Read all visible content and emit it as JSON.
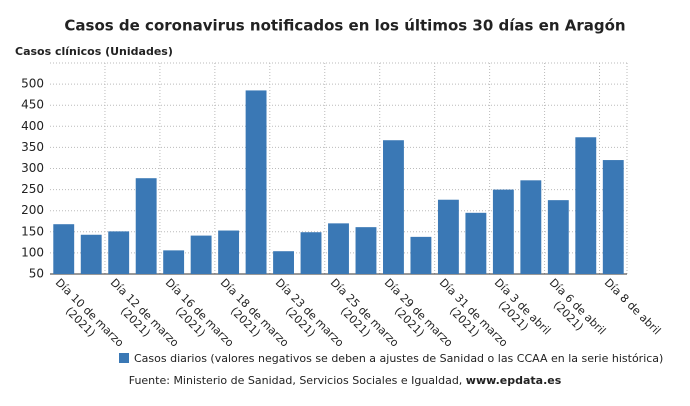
{
  "chart_data": {
    "type": "bar",
    "title": "Casos de coronavirus notificados en los últimos 30 días en Aragón",
    "y_label": "Casos clínicos (Unidades)",
    "categories": [
      "Día 10 de marzo\n(2021)",
      null,
      "Día 12 de marzo\n(2021)",
      null,
      "Día 16 de marzo\n(2021)",
      null,
      "Día 18 de marzo\n(2021)",
      null,
      "Día 23 de marzo\n(2021)",
      null,
      "Día 25 de marzo\n(2021)",
      null,
      "Día 29 de marzo\n(2021)",
      null,
      "Día 31 de marzo\n(2021)",
      null,
      "Día 3 de abril\n(2021)",
      null,
      "Día 6 de abril\n(2021)",
      null,
      "Día 8 de abril"
    ],
    "series": [
      {
        "name": "Casos diarios (valores negativos se deben a ajustes de Sanidad o las CCAA en la serie histórica)",
        "color": "#3a78b5",
        "values": [
          168,
          143,
          151,
          277,
          106,
          141,
          153,
          485,
          104,
          149,
          170,
          161,
          367,
          138,
          226,
          195,
          250,
          272,
          225,
          374,
          320
        ]
      }
    ],
    "ylim": [
      50,
      550
    ],
    "yticks": [
      50,
      100,
      150,
      200,
      250,
      300,
      350,
      400,
      450,
      500
    ],
    "grid": true,
    "source": "Fuente: Ministerio de Sanidad, Servicios Sociales e Igualdad, ",
    "source_link": "www.epdata.es"
  }
}
